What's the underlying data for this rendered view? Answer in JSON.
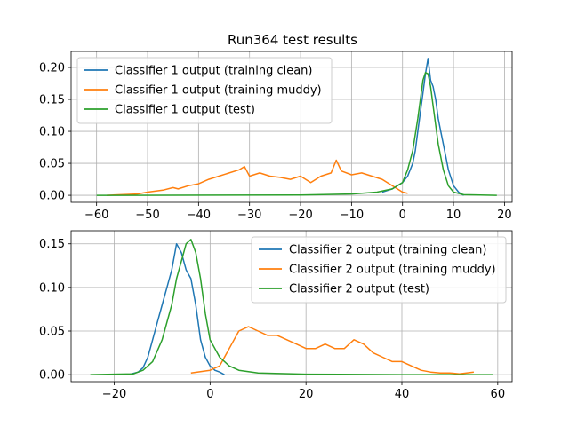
{
  "figure": {
    "title": "Run364 test results"
  },
  "colors": {
    "clean": "#1f77b4",
    "muddy": "#ff7f0e",
    "test": "#2ca02c",
    "grid": "#b0b0b0"
  },
  "chart_data": [
    {
      "type": "line",
      "title": "Run364 test results",
      "xlabel": "",
      "ylabel": "",
      "xlim": [
        -65,
        21.5
      ],
      "ylim": [
        -0.011,
        0.225
      ],
      "xticks": [
        -60,
        -50,
        -40,
        -30,
        -20,
        -10,
        0,
        10,
        20
      ],
      "yticks": [
        0.0,
        0.05,
        0.1,
        0.15,
        0.2
      ],
      "xtick_labels": [
        "−60",
        "−50",
        "−40",
        "−30",
        "−20",
        "−10",
        "0",
        "10",
        "20"
      ],
      "ytick_labels": [
        "0.00",
        "0.05",
        "0.10",
        "0.15",
        "0.20"
      ],
      "grid": true,
      "legend_position": "top-left",
      "series": [
        {
          "name": "Classifier 1 output (training clean)",
          "color": "#1f77b4",
          "x": [
            -4,
            -2,
            -1,
            0,
            1,
            2,
            2.5,
            3,
            3.5,
            4,
            4.5,
            5,
            5.5,
            6,
            6.5,
            7,
            7.5,
            8,
            8.5,
            9,
            10,
            11,
            12
          ],
          "y": [
            0.005,
            0.01,
            0.015,
            0.02,
            0.03,
            0.05,
            0.07,
            0.1,
            0.13,
            0.16,
            0.19,
            0.214,
            0.18,
            0.17,
            0.15,
            0.12,
            0.1,
            0.08,
            0.06,
            0.04,
            0.015,
            0.005,
            0.0
          ]
        },
        {
          "name": "Classifier 1 output (training muddy)",
          "color": "#ff7f0e",
          "x": [
            -58,
            -52,
            -50,
            -47,
            -45,
            -44,
            -42,
            -40,
            -38,
            -36,
            -34,
            -32,
            -31,
            -30,
            -28,
            -26,
            -24,
            -22,
            -20,
            -18,
            -16,
            -14,
            -13,
            -12,
            -10,
            -8,
            -6,
            -4,
            -2,
            0,
            1
          ],
          "y": [
            0.0,
            0.002,
            0.005,
            0.008,
            0.012,
            0.01,
            0.015,
            0.018,
            0.025,
            0.03,
            0.035,
            0.04,
            0.045,
            0.03,
            0.035,
            0.03,
            0.028,
            0.025,
            0.03,
            0.02,
            0.03,
            0.035,
            0.055,
            0.038,
            0.032,
            0.035,
            0.03,
            0.025,
            0.015,
            0.005,
            0.003
          ]
        },
        {
          "name": "Classifier 1 output (test)",
          "color": "#2ca02c",
          "x": [
            -60,
            -20,
            -10,
            -5,
            -2,
            0,
            1,
            2,
            3,
            3.5,
            4,
            4.5,
            5,
            5.5,
            6,
            6.5,
            7,
            8,
            9,
            10,
            12,
            18.5
          ],
          "y": [
            0.0,
            0.0005,
            0.002,
            0.005,
            0.01,
            0.02,
            0.04,
            0.07,
            0.12,
            0.15,
            0.18,
            0.192,
            0.19,
            0.17,
            0.14,
            0.11,
            0.08,
            0.04,
            0.015,
            0.005,
            0.001,
            0.0
          ]
        }
      ]
    },
    {
      "type": "line",
      "title": "",
      "xlabel": "",
      "ylabel": "",
      "xlim": [
        -29,
        63
      ],
      "ylim": [
        -0.008,
        0.165
      ],
      "xticks": [
        -20,
        0,
        20,
        40,
        60
      ],
      "yticks": [
        0.0,
        0.05,
        0.1,
        0.15
      ],
      "xtick_labels": [
        "−20",
        "0",
        "20",
        "40",
        "60"
      ],
      "ytick_labels": [
        "0.00",
        "0.05",
        "0.10",
        "0.15"
      ],
      "grid": true,
      "legend_position": "top-right",
      "series": [
        {
          "name": "Classifier 2 output (training clean)",
          "color": "#1f77b4",
          "x": [
            -17,
            -15,
            -14,
            -13,
            -12,
            -11,
            -10,
            -9,
            -8,
            -7,
            -6,
            -5,
            -4,
            -3,
            -2,
            -1,
            0,
            1,
            2,
            3
          ],
          "y": [
            0.0,
            0.003,
            0.008,
            0.02,
            0.04,
            0.06,
            0.08,
            0.1,
            0.12,
            0.15,
            0.14,
            0.12,
            0.11,
            0.08,
            0.04,
            0.02,
            0.01,
            0.005,
            0.003,
            0.0
          ]
        },
        {
          "name": "Classifier 2 output (training muddy)",
          "color": "#ff7f0e",
          "x": [
            -4,
            0,
            2,
            3,
            4,
            5,
            6,
            8,
            10,
            12,
            14,
            16,
            18,
            20,
            22,
            24,
            26,
            28,
            30,
            32,
            34,
            36,
            38,
            40,
            42,
            44,
            46,
            48,
            50,
            52,
            55
          ],
          "y": [
            0.002,
            0.005,
            0.01,
            0.02,
            0.03,
            0.04,
            0.05,
            0.055,
            0.05,
            0.045,
            0.045,
            0.04,
            0.035,
            0.03,
            0.03,
            0.035,
            0.03,
            0.03,
            0.04,
            0.035,
            0.025,
            0.02,
            0.015,
            0.015,
            0.01,
            0.005,
            0.003,
            0.002,
            0.002,
            0.001,
            0.003
          ]
        },
        {
          "name": "Classifier 2 output (test)",
          "color": "#2ca02c",
          "x": [
            -25,
            -16,
            -14,
            -12,
            -10,
            -8,
            -7,
            -6,
            -5,
            -4,
            -3,
            -2,
            -1,
            0,
            2,
            4,
            6,
            10,
            20,
            40,
            59
          ],
          "y": [
            0.0,
            0.001,
            0.005,
            0.015,
            0.04,
            0.08,
            0.11,
            0.13,
            0.15,
            0.155,
            0.14,
            0.11,
            0.07,
            0.04,
            0.02,
            0.01,
            0.005,
            0.002,
            0.0005,
            0.0,
            0.0
          ]
        }
      ]
    }
  ]
}
